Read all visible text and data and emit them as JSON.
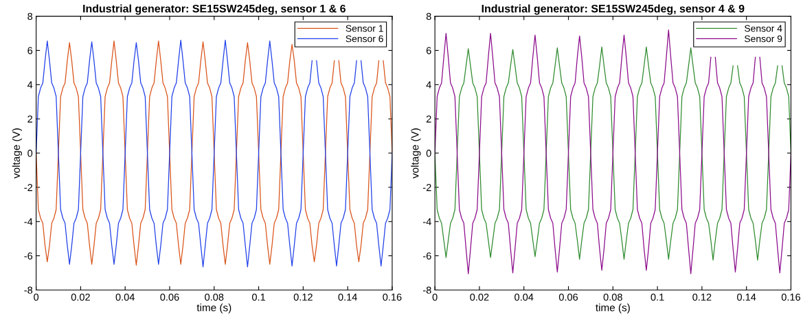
{
  "chart_data": [
    {
      "type": "line",
      "title": "Industrial generator: SE15SW245deg, sensor 1 & 6",
      "xlabel": "time (s)",
      "ylabel": "voltage (V)",
      "xlim": [
        0,
        0.16
      ],
      "xticks": [
        0,
        0.02,
        0.04,
        0.06,
        0.08,
        0.1,
        0.12,
        0.14,
        0.16
      ],
      "ylim": [
        -8,
        8
      ],
      "yticks": [
        -8,
        -6,
        -4,
        -2,
        0,
        2,
        4,
        6,
        8
      ],
      "grid": false,
      "legend": "top right",
      "line_style": "solid",
      "marker": "none",
      "x": [
        0,
        0.001,
        0.002,
        0.003,
        0.004,
        0.005,
        0.006,
        0.007,
        0.008,
        0.009,
        0.01,
        0.011,
        0.012,
        0.013,
        0.014,
        0.015,
        0.016,
        0.017,
        0.018,
        0.019,
        0.02,
        0.021,
        0.022,
        0.023,
        0.024,
        0.025,
        0.026,
        0.027,
        0.028,
        0.029,
        0.03,
        0.031,
        0.032,
        0.033,
        0.034,
        0.035,
        0.036,
        0.037,
        0.038,
        0.039,
        0.04,
        0.041,
        0.042,
        0.043,
        0.044,
        0.045,
        0.046,
        0.047,
        0.048,
        0.049,
        0.05,
        0.051,
        0.052,
        0.053,
        0.054,
        0.055,
        0.056,
        0.057,
        0.058,
        0.059,
        0.06,
        0.061,
        0.062,
        0.063,
        0.064,
        0.065,
        0.066,
        0.067,
        0.068,
        0.069,
        0.07,
        0.071,
        0.072,
        0.073,
        0.074,
        0.075,
        0.076,
        0.077,
        0.078,
        0.079,
        0.08,
        0.081,
        0.082,
        0.083,
        0.084,
        0.085,
        0.086,
        0.087,
        0.088,
        0.089,
        0.09,
        0.091,
        0.092,
        0.093,
        0.094,
        0.095,
        0.096,
        0.097,
        0.098,
        0.099,
        0.1,
        0.101,
        0.102,
        0.103,
        0.104,
        0.105,
        0.106,
        0.107,
        0.108,
        0.109,
        0.11,
        0.111,
        0.112,
        0.113,
        0.114,
        0.115,
        0.116,
        0.117,
        0.118,
        0.119,
        0.12,
        0.121,
        0.122,
        0.123,
        0.124,
        0.125,
        0.126,
        0.127,
        0.128,
        0.129,
        0.13,
        0.131,
        0.132,
        0.133,
        0.134,
        0.135,
        0.136,
        0.137,
        0.138,
        0.139,
        0.14,
        0.141,
        0.142,
        0.143,
        0.144,
        0.145,
        0.146,
        0.147,
        0.148,
        0.149,
        0.15,
        0.151,
        0.152,
        0.153,
        0.154,
        0.155,
        0.156,
        0.157,
        0.158,
        0.159,
        0.16
      ],
      "series": [
        {
          "name": "Sensor 1",
          "color": "#d95319",
          "values": [
            0,
            -3.3,
            -3.8,
            -4.1,
            -5.4,
            -6.35,
            -5.4,
            -4.1,
            -3.8,
            -3.3,
            0,
            3.3,
            3.8,
            4.1,
            5.4,
            6.45,
            5.4,
            4.1,
            3.8,
            3.3,
            0,
            -3.3,
            -3.8,
            -4.1,
            -5.4,
            -6.5,
            -5.4,
            -4.1,
            -3.8,
            -3.3,
            0,
            3.3,
            3.8,
            4.1,
            5.4,
            6.55,
            5.4,
            4.1,
            3.8,
            3.3,
            0,
            -3.3,
            -3.8,
            -4.1,
            -5.4,
            -6.55,
            -5.4,
            -4.1,
            -3.8,
            -3.3,
            0,
            3.3,
            3.8,
            4.1,
            5.4,
            6.55,
            5.4,
            4.1,
            3.8,
            3.3,
            0,
            -3.3,
            -3.8,
            -4.1,
            -5.4,
            -6.5,
            -5.4,
            -4.1,
            -3.8,
            -3.3,
            0,
            3.3,
            3.8,
            4.1,
            5.4,
            6.5,
            5.4,
            4.1,
            3.8,
            3.3,
            0,
            -3.3,
            -3.8,
            -4.1,
            -5.4,
            -6.5,
            -5.4,
            -4.1,
            -3.8,
            -3.3,
            0,
            3.3,
            3.8,
            4.1,
            5.4,
            6.45,
            5.4,
            4.1,
            3.8,
            3.3,
            0,
            -3.3,
            -3.8,
            -4.1,
            -5.4,
            -6.5,
            -5.4,
            -4.1,
            -3.8,
            -3.3,
            0,
            3.3,
            3.8,
            4.1,
            5.4,
            6.35,
            5.4,
            4.1,
            3.8,
            3.3,
            0,
            -3.3,
            -3.8,
            -4.1,
            -5.4,
            -6.35,
            -5.4,
            -4.1,
            -3.8,
            -3.3,
            0,
            3.3,
            3.8,
            4.1,
            5.4,
            null,
            5.4,
            4.1,
            3.8,
            3.3,
            0,
            -3.3,
            -3.8,
            -4.1,
            -5.4,
            -6.35,
            -5.4,
            -4.1,
            -3.8,
            -3.3,
            0,
            3.3,
            3.8,
            4.1,
            5.4,
            null,
            5.4,
            4.1,
            3.8,
            3.3,
            0
          ]
        },
        {
          "name": "Sensor 6",
          "color": "#1f3fe8",
          "values": [
            0,
            3.3,
            3.8,
            4.1,
            5.4,
            6.55,
            5.4,
            4.1,
            3.8,
            3.3,
            0,
            -3.3,
            -3.8,
            -4.1,
            -5.4,
            -6.5,
            -5.4,
            -4.1,
            -3.8,
            -3.3,
            0,
            3.3,
            3.8,
            4.1,
            5.4,
            6.5,
            5.4,
            4.1,
            3.8,
            3.3,
            0,
            -3.3,
            -3.8,
            -4.1,
            -5.4,
            -6.5,
            -5.4,
            -4.1,
            -3.8,
            -3.3,
            0,
            3.3,
            3.8,
            4.1,
            5.4,
            6.45,
            5.4,
            4.1,
            3.8,
            3.3,
            0,
            -3.3,
            -3.8,
            -4.1,
            -5.4,
            -6.5,
            -5.4,
            -4.1,
            -3.8,
            -3.3,
            0,
            3.3,
            3.8,
            4.1,
            5.4,
            6.6,
            5.4,
            4.1,
            3.8,
            3.3,
            0,
            -3.3,
            -3.8,
            -4.1,
            -5.4,
            -6.65,
            -5.4,
            -4.1,
            -3.8,
            -3.3,
            0,
            3.3,
            3.8,
            4.1,
            5.4,
            6.6,
            5.4,
            4.1,
            3.8,
            3.3,
            0,
            -3.3,
            -3.8,
            -4.1,
            -5.4,
            -6.65,
            -5.4,
            -4.1,
            -3.8,
            -3.3,
            0,
            3.3,
            3.8,
            4.1,
            5.4,
            6.55,
            5.4,
            4.1,
            3.8,
            3.3,
            0,
            -3.3,
            -3.8,
            -4.1,
            -5.4,
            -6.6,
            -5.4,
            -4.1,
            -3.8,
            -3.3,
            0,
            3.3,
            3.8,
            4.1,
            5.4,
            null,
            5.4,
            4.1,
            3.8,
            3.3,
            0,
            -3.3,
            -3.8,
            -4.1,
            -5.4,
            -6.6,
            -5.4,
            -4.1,
            -3.8,
            -3.3,
            0,
            3.3,
            3.8,
            4.1,
            5.4,
            null,
            5.4,
            4.1,
            3.8,
            3.3,
            0,
            -3.3,
            -3.8,
            -4.1,
            -5.4,
            -6.6,
            -5.4,
            -4.1,
            -3.8,
            -3.3,
            0
          ]
        }
      ]
    },
    {
      "type": "line",
      "title": "Industrial generator: SE15SW245deg, sensor 4 & 9",
      "xlabel": "time (s)",
      "ylabel": "voltage (V)",
      "xlim": [
        0,
        0.16
      ],
      "xticks": [
        0,
        0.02,
        0.04,
        0.06,
        0.08,
        0.1,
        0.12,
        0.14,
        0.16
      ],
      "ylim": [
        -8,
        8
      ],
      "yticks": [
        -8,
        -6,
        -4,
        -2,
        0,
        2,
        4,
        6,
        8
      ],
      "grid": false,
      "legend": "top right",
      "line_style": "solid",
      "marker": "none",
      "x": [
        0,
        0.001,
        0.002,
        0.003,
        0.004,
        0.005,
        0.006,
        0.007,
        0.008,
        0.009,
        0.01,
        0.011,
        0.012,
        0.013,
        0.014,
        0.015,
        0.016,
        0.017,
        0.018,
        0.019,
        0.02,
        0.021,
        0.022,
        0.023,
        0.024,
        0.025,
        0.026,
        0.027,
        0.028,
        0.029,
        0.03,
        0.031,
        0.032,
        0.033,
        0.034,
        0.035,
        0.036,
        0.037,
        0.038,
        0.039,
        0.04,
        0.041,
        0.042,
        0.043,
        0.044,
        0.045,
        0.046,
        0.047,
        0.048,
        0.049,
        0.05,
        0.051,
        0.052,
        0.053,
        0.054,
        0.055,
        0.056,
        0.057,
        0.058,
        0.059,
        0.06,
        0.061,
        0.062,
        0.063,
        0.064,
        0.065,
        0.066,
        0.067,
        0.068,
        0.069,
        0.07,
        0.071,
        0.072,
        0.073,
        0.074,
        0.075,
        0.076,
        0.077,
        0.078,
        0.079,
        0.08,
        0.081,
        0.082,
        0.083,
        0.084,
        0.085,
        0.086,
        0.087,
        0.088,
        0.089,
        0.09,
        0.091,
        0.092,
        0.093,
        0.094,
        0.095,
        0.096,
        0.097,
        0.098,
        0.099,
        0.1,
        0.101,
        0.102,
        0.103,
        0.104,
        0.105,
        0.106,
        0.107,
        0.108,
        0.109,
        0.11,
        0.111,
        0.112,
        0.113,
        0.114,
        0.115,
        0.116,
        0.117,
        0.118,
        0.119,
        0.12,
        0.121,
        0.122,
        0.123,
        0.124,
        0.125,
        0.126,
        0.127,
        0.128,
        0.129,
        0.13,
        0.131,
        0.132,
        0.133,
        0.134,
        0.135,
        0.136,
        0.137,
        0.138,
        0.139,
        0.14,
        0.141,
        0.142,
        0.143,
        0.144,
        0.145,
        0.146,
        0.147,
        0.148,
        0.149,
        0.15,
        0.151,
        0.152,
        0.153,
        0.154,
        0.155,
        0.156,
        0.157,
        0.158,
        0.159,
        0.16
      ],
      "series": [
        {
          "name": "Sensor 4",
          "color": "#2e8b2e",
          "values": [
            0,
            -3.3,
            -3.8,
            -4.1,
            -5.1,
            -6.1,
            -5.1,
            -4.1,
            -3.8,
            -3.3,
            0,
            3.3,
            3.8,
            4.1,
            5.1,
            6.1,
            5.1,
            4.1,
            3.8,
            3.3,
            0,
            -3.3,
            -3.8,
            -4.1,
            -5.1,
            -6.1,
            -5.1,
            -4.1,
            -3.8,
            -3.3,
            0,
            3.3,
            3.8,
            4.1,
            5.1,
            6.05,
            5.1,
            4.1,
            3.8,
            3.3,
            0,
            -3.3,
            -3.8,
            -4.1,
            -5.1,
            -6.05,
            -5.1,
            -4.1,
            -3.8,
            -3.3,
            0,
            3.3,
            3.8,
            4.1,
            5.1,
            6.15,
            5.1,
            4.1,
            3.8,
            3.3,
            0,
            -3.3,
            -3.8,
            -4.1,
            -5.1,
            -6.2,
            -5.1,
            -4.1,
            -3.8,
            -3.3,
            0,
            3.3,
            3.8,
            4.1,
            5.1,
            6.2,
            5.1,
            4.1,
            3.8,
            3.3,
            0,
            -3.3,
            -3.8,
            -4.1,
            -5.1,
            -6.2,
            -5.1,
            -4.1,
            -3.8,
            -3.3,
            0,
            3.3,
            3.8,
            4.1,
            5.1,
            6.2,
            5.1,
            4.1,
            3.8,
            3.3,
            0,
            -3.3,
            -3.8,
            -4.1,
            -5.1,
            -6.2,
            -5.1,
            -4.1,
            -3.8,
            -3.3,
            0,
            3.3,
            3.8,
            4.1,
            5.1,
            6.15,
            5.1,
            4.1,
            3.8,
            3.3,
            0,
            -3.3,
            -3.8,
            -4.1,
            -5.1,
            -6.25,
            -5.1,
            -4.1,
            -3.8,
            -3.3,
            0,
            3.3,
            3.8,
            4.1,
            5.1,
            null,
            5.1,
            4.1,
            3.8,
            3.3,
            0,
            -3.3,
            -3.8,
            -4.1,
            -5.1,
            -6.25,
            -5.1,
            -4.1,
            -3.8,
            -3.3,
            0,
            3.3,
            3.8,
            4.1,
            5.1,
            null,
            5.1,
            4.1,
            3.8,
            3.3,
            0
          ]
        },
        {
          "name": "Sensor 9",
          "color": "#8b0a8b",
          "values": [
            0,
            3.3,
            3.8,
            4.1,
            5.6,
            7.0,
            5.6,
            4.1,
            3.8,
            3.3,
            0,
            -3.3,
            -3.8,
            -4.1,
            -5.6,
            -7.05,
            -5.6,
            -4.1,
            -3.8,
            -3.3,
            0,
            3.3,
            3.8,
            4.1,
            5.6,
            7.0,
            5.6,
            4.1,
            3.8,
            3.3,
            0,
            -3.3,
            -3.8,
            -4.1,
            -5.6,
            -7.0,
            -5.6,
            -4.1,
            -3.8,
            -3.3,
            0,
            3.3,
            3.8,
            4.1,
            5.6,
            6.9,
            5.6,
            4.1,
            3.8,
            3.3,
            0,
            -3.3,
            -3.8,
            -4.1,
            -5.6,
            -6.95,
            -5.6,
            -4.1,
            -3.8,
            -3.3,
            0,
            3.3,
            3.8,
            4.1,
            5.6,
            6.85,
            5.6,
            4.1,
            3.8,
            3.3,
            0,
            -3.3,
            -3.8,
            -4.1,
            -5.6,
            -6.85,
            -5.6,
            -4.1,
            -3.8,
            -3.3,
            0,
            3.3,
            3.8,
            4.1,
            5.6,
            6.9,
            5.6,
            4.1,
            3.8,
            3.3,
            0,
            -3.3,
            -3.8,
            -4.1,
            -5.6,
            -6.85,
            -5.6,
            -4.1,
            -3.8,
            -3.3,
            0,
            3.3,
            3.8,
            4.1,
            5.6,
            7.2,
            5.6,
            4.1,
            3.8,
            3.3,
            0,
            -3.3,
            -3.8,
            -4.1,
            -5.6,
            -7.05,
            -5.6,
            -4.1,
            -3.8,
            -3.3,
            0,
            3.3,
            3.8,
            4.1,
            5.6,
            null,
            5.6,
            4.1,
            3.8,
            3.3,
            0,
            -3.3,
            -3.8,
            -4.1,
            -5.6,
            -6.95,
            -5.6,
            -4.1,
            -3.8,
            -3.3,
            0,
            3.3,
            3.8,
            4.1,
            5.6,
            null,
            5.6,
            4.1,
            3.8,
            3.3,
            0,
            -3.3,
            -3.8,
            -4.1,
            -5.6,
            -7.0,
            -5.6,
            -4.1,
            -3.8,
            -3.3,
            0
          ]
        }
      ]
    }
  ]
}
